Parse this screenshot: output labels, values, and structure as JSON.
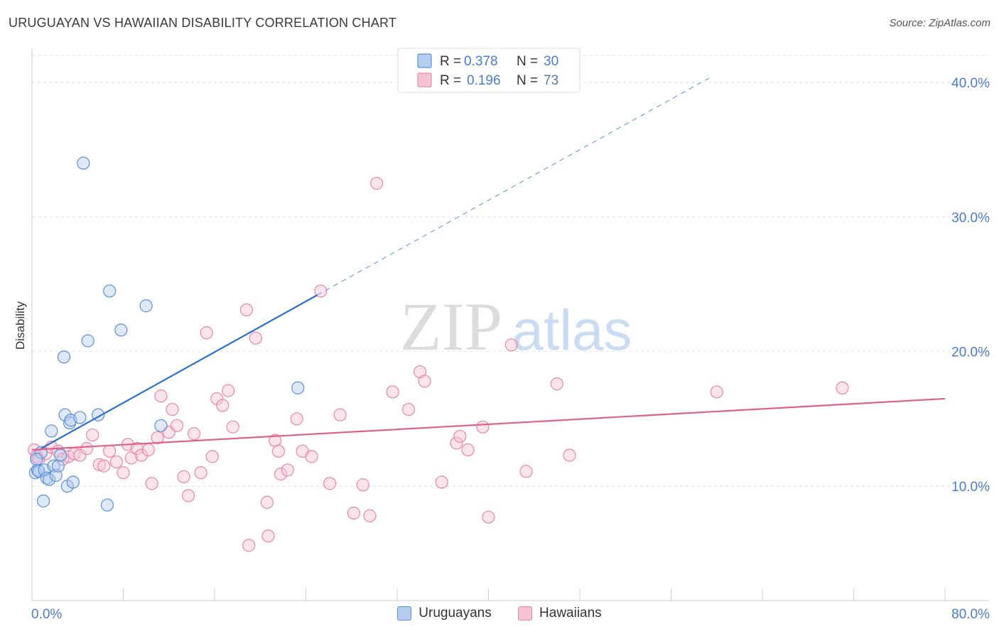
{
  "title": "URUGUAYAN VS HAWAIIAN DISABILITY CORRELATION CHART",
  "source": "Source: ZipAtlas.com",
  "watermark": {
    "zip": "ZIP",
    "atlas": "atlas"
  },
  "colors": {
    "uruguayans": "#5b8fd6",
    "uruguayans_fill": "#b5cdf0",
    "uruguayans_line": "#2a6fd0",
    "hawaiians": "#e886a6",
    "hawaiians_fill": "#f6c3d3",
    "hawaiians_line": "#e0608c",
    "axis_text": "#4a7ccc"
  },
  "legend": {
    "uruguayans": {
      "r_label": "R =",
      "r_value": "0.378",
      "n_label": "N =",
      "n_value": "30"
    },
    "hawaiians": {
      "r_label": "R =",
      "r_value": "0.196",
      "n_label": "N =",
      "n_value": "73"
    }
  },
  "chart_data": {
    "type": "scatter",
    "title": "URUGUAYAN VS HAWAIIAN DISABILITY CORRELATION CHART",
    "xlabel": "",
    "ylabel": "Disability",
    "xlim": [
      0,
      80
    ],
    "ylim": [
      1.5,
      42
    ],
    "x_tick_labels": [
      "0.0%",
      "80.0%"
    ],
    "y_ticks": [
      10,
      20,
      30,
      40
    ],
    "y_tick_labels": [
      "10.0%",
      "20.0%",
      "30.0%",
      "40.0%"
    ],
    "grid": true,
    "legend_position": "top-center",
    "series": [
      {
        "name": "Uruguayans",
        "R": 0.378,
        "N": 30,
        "trend": {
          "x0": 0.8,
          "y0": 12.8,
          "x1": 25,
          "y1": 24.2,
          "x_dash_end": 59.3,
          "y_dash_end": 40.3
        },
        "points": [
          [
            0.3,
            11.0
          ],
          [
            0.5,
            11.2
          ],
          [
            0.6,
            11.1
          ],
          [
            0.8,
            12.5
          ],
          [
            1.0,
            8.9
          ],
          [
            1.1,
            11.2
          ],
          [
            1.3,
            10.6
          ],
          [
            1.5,
            10.5
          ],
          [
            1.7,
            14.1
          ],
          [
            1.9,
            11.5
          ],
          [
            2.1,
            10.8
          ],
          [
            2.3,
            11.5
          ],
          [
            2.5,
            12.3
          ],
          [
            2.8,
            19.6
          ],
          [
            2.9,
            15.3
          ],
          [
            3.1,
            10.0
          ],
          [
            3.3,
            14.7
          ],
          [
            3.4,
            14.9
          ],
          [
            3.6,
            10.3
          ],
          [
            4.2,
            15.1
          ],
          [
            4.5,
            34.0
          ],
          [
            4.9,
            20.8
          ],
          [
            5.8,
            15.3
          ],
          [
            6.6,
            8.6
          ],
          [
            6.8,
            24.5
          ],
          [
            7.8,
            21.6
          ],
          [
            10.0,
            23.4
          ],
          [
            11.3,
            14.5
          ],
          [
            23.3,
            17.3
          ],
          [
            0.4,
            12.0
          ]
        ]
      },
      {
        "name": "Hawaiians",
        "R": 0.196,
        "N": 73,
        "trend": {
          "x0": 0,
          "y0": 12.7,
          "x1": 80,
          "y1": 16.5
        },
        "points": [
          [
            0.2,
            12.7
          ],
          [
            0.4,
            12.2
          ],
          [
            0.6,
            12.0
          ],
          [
            1.2,
            12.4
          ],
          [
            1.7,
            12.9
          ],
          [
            2.3,
            12.6
          ],
          [
            2.7,
            12.0
          ],
          [
            3.2,
            12.2
          ],
          [
            3.7,
            12.4
          ],
          [
            4.2,
            12.3
          ],
          [
            4.8,
            12.8
          ],
          [
            5.3,
            13.8
          ],
          [
            5.9,
            11.6
          ],
          [
            6.3,
            11.5
          ],
          [
            6.8,
            12.6
          ],
          [
            7.4,
            11.8
          ],
          [
            8.0,
            11.0
          ],
          [
            8.4,
            13.1
          ],
          [
            8.7,
            12.1
          ],
          [
            9.2,
            12.8
          ],
          [
            9.6,
            12.3
          ],
          [
            10.2,
            12.7
          ],
          [
            10.5,
            10.2
          ],
          [
            11.0,
            13.6
          ],
          [
            11.3,
            16.7
          ],
          [
            12.0,
            14.0
          ],
          [
            12.3,
            15.7
          ],
          [
            12.7,
            14.5
          ],
          [
            13.3,
            10.7
          ],
          [
            13.7,
            9.3
          ],
          [
            14.2,
            13.9
          ],
          [
            14.8,
            11.0
          ],
          [
            15.3,
            21.4
          ],
          [
            15.8,
            12.2
          ],
          [
            16.2,
            16.5
          ],
          [
            16.7,
            16.0
          ],
          [
            17.2,
            17.1
          ],
          [
            17.6,
            14.4
          ],
          [
            18.8,
            23.1
          ],
          [
            19.0,
            5.6
          ],
          [
            19.6,
            21.0
          ],
          [
            20.6,
            8.8
          ],
          [
            20.7,
            6.3
          ],
          [
            21.3,
            13.4
          ],
          [
            21.6,
            12.6
          ],
          [
            21.8,
            10.9
          ],
          [
            22.4,
            11.2
          ],
          [
            23.2,
            15.0
          ],
          [
            23.7,
            12.6
          ],
          [
            24.5,
            12.2
          ],
          [
            25.3,
            24.5
          ],
          [
            26.1,
            10.2
          ],
          [
            27.0,
            15.3
          ],
          [
            28.2,
            8.0
          ],
          [
            29.0,
            10.1
          ],
          [
            29.6,
            7.8
          ],
          [
            30.2,
            32.5
          ],
          [
            31.6,
            17.0
          ],
          [
            33.0,
            15.7
          ],
          [
            34.0,
            18.5
          ],
          [
            34.4,
            17.8
          ],
          [
            35.9,
            10.3
          ],
          [
            37.2,
            13.2
          ],
          [
            37.5,
            13.7
          ],
          [
            38.2,
            12.7
          ],
          [
            39.5,
            14.4
          ],
          [
            40.0,
            7.7
          ],
          [
            42.0,
            20.5
          ],
          [
            43.3,
            11.1
          ],
          [
            46.0,
            17.6
          ],
          [
            47.1,
            12.3
          ],
          [
            60.0,
            17.0
          ],
          [
            71.0,
            17.3
          ]
        ]
      }
    ]
  }
}
